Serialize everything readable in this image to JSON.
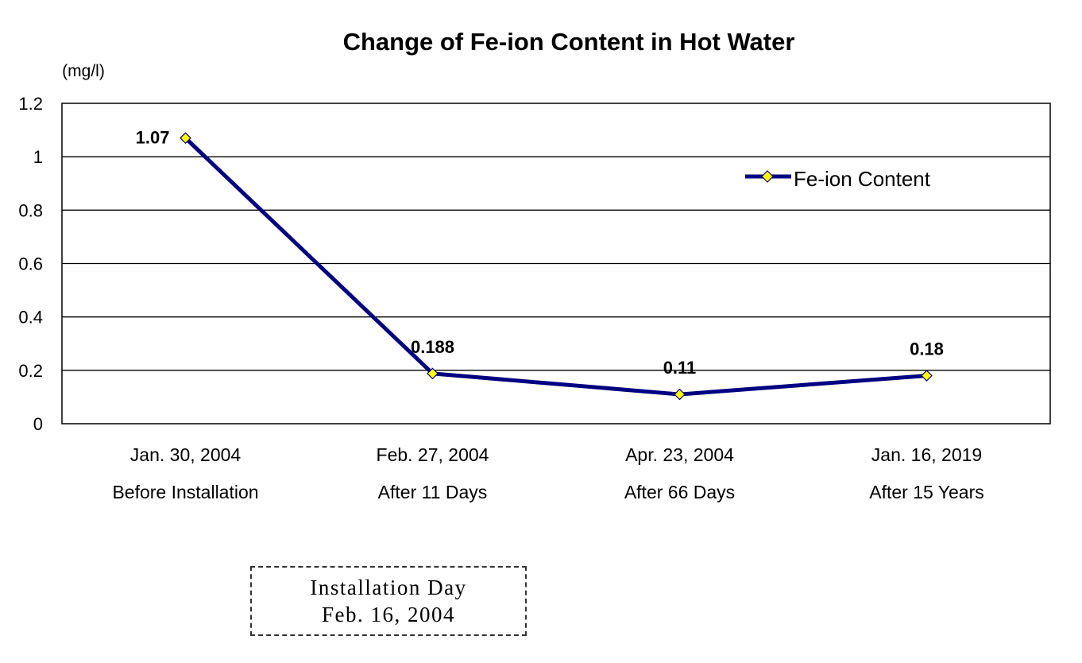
{
  "chart_data": {
    "type": "line",
    "title": "Change of Fe-ion Content in Hot Water",
    "y_unit_label": "(mg/l)",
    "ylim": [
      0,
      1.2
    ],
    "y_ticks": [
      "0",
      "0.2",
      "0.4",
      "0.6",
      "0.8",
      "1",
      "1.2"
    ],
    "y_tick_values": [
      0,
      0.2,
      0.4,
      0.6,
      0.8,
      1,
      1.2
    ],
    "categories": [
      {
        "date": "Jan. 30, 2004",
        "label": "Before Installation"
      },
      {
        "date": "Feb. 27, 2004",
        "label": "After 11 Days"
      },
      {
        "date": "Apr. 23, 2004",
        "label": "After 66 Days"
      },
      {
        "date": "Jan. 16, 2019",
        "label": "After 15 Years"
      }
    ],
    "series": [
      {
        "name": "Fe-ion Content",
        "values": [
          1.07,
          0.188,
          0.11,
          0.18
        ],
        "data_labels": [
          "1.07",
          "0.188",
          "0.11",
          "0.18"
        ],
        "line_color": "#000080",
        "marker_color": "#ffff00"
      }
    ],
    "grid": true,
    "legend_position": "top-right"
  },
  "note": {
    "line1": "Installation Day",
    "line2": "Feb. 16, 2004"
  }
}
